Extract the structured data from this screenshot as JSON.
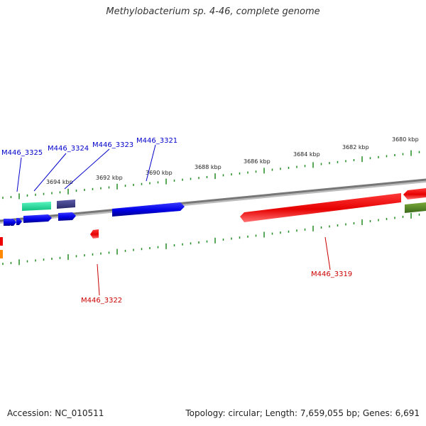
{
  "title": "Methylobacterium sp. 4-46, complete genome",
  "footer": {
    "accession": "Accession: NC_010511",
    "summary": "Topology: circular; Length: 7,659,055 bp; Genes: 6,691"
  },
  "ticks": [
    {
      "label": "3694 kbp"
    },
    {
      "label": "3692 kbp"
    },
    {
      "label": "3690 kbp"
    },
    {
      "label": "3688 kbp"
    },
    {
      "label": "3686 kbp"
    },
    {
      "label": "3684 kbp"
    },
    {
      "label": "3682 kbp"
    },
    {
      "label": "3680 kbp"
    }
  ],
  "gene_labels": [
    {
      "label": "M446_3325",
      "strand": "forward"
    },
    {
      "label": "M446_3324",
      "strand": "forward"
    },
    {
      "label": "M446_3323",
      "strand": "forward"
    },
    {
      "label": "M446_3321",
      "strand": "forward"
    },
    {
      "label": "M446_3322",
      "strand": "reverse"
    },
    {
      "label": "M446_3319",
      "strand": "reverse"
    }
  ],
  "colors": {
    "forward_cds": "#0000ee",
    "reverse_cds": "#ee0000",
    "teal_feature": "#22e0a0",
    "slate_feature": "#3a3a8a",
    "olive_feature": "#5a8a2a",
    "orange_feature": "#ff8800",
    "backbone": "#888888",
    "tick": "#228b22"
  }
}
